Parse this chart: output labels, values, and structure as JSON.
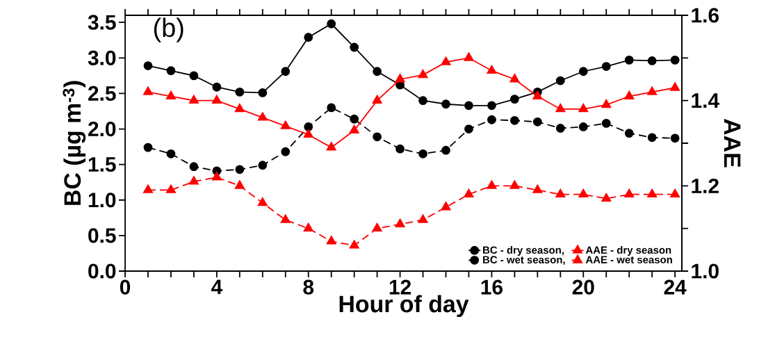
{
  "chart_data": {
    "type": "line",
    "xlabel": "Hour of day",
    "ylabel": "BC (µg m$^{-3}$)",
    "y2label": "AAE",
    "annotations": [
      "(b)"
    ],
    "x": [
      1,
      2,
      3,
      4,
      5,
      6,
      7,
      8,
      9,
      10,
      11,
      12,
      13,
      14,
      15,
      16,
      17,
      18,
      19,
      20,
      21,
      22,
      23,
      24
    ],
    "xlim": [
      0,
      24.3
    ],
    "xticks": [
      0,
      {
        "value": 1,
        "label": null
      },
      {
        "value": 2,
        "label": null
      },
      {
        "value": 3,
        "label": null
      },
      4,
      {
        "value": 5,
        "label": null
      },
      {
        "value": 6,
        "label": null
      },
      {
        "value": 7,
        "label": null
      },
      8,
      {
        "value": 9,
        "label": null
      },
      {
        "value": 10,
        "label": null
      },
      {
        "value": 11,
        "label": null
      },
      12,
      {
        "value": 13,
        "label": null
      },
      {
        "value": 14,
        "label": null
      },
      {
        "value": 15,
        "label": null
      },
      16,
      {
        "value": 17,
        "label": null
      },
      {
        "value": 18,
        "label": null
      },
      {
        "value": 19,
        "label": null
      },
      20,
      {
        "value": 21,
        "label": null
      },
      {
        "value": 22,
        "label": null
      },
      {
        "value": 23,
        "label": null
      },
      24
    ],
    "ylim": [
      0,
      3.6
    ],
    "yticks": [
      {
        "value": 0,
        "label": "0.0"
      },
      0.5,
      {
        "value": 1,
        "label": "1.0"
      },
      1.5,
      {
        "value": 2,
        "label": "2.0"
      },
      2.5,
      {
        "value": 3,
        "label": "3.0"
      },
      3.5
    ],
    "y2lim": [
      1.0,
      1.6
    ],
    "y2ticks": [
      {
        "value": 1.0,
        "label": "1.0"
      },
      {
        "value": 1.1,
        "label": null
      },
      1.2,
      {
        "value": 1.3,
        "label": null
      },
      1.4,
      {
        "value": 1.5,
        "label": null
      },
      1.6
    ],
    "legend": "bottom right",
    "series": [
      {
        "name": "BC - dry season,",
        "color": "#000000",
        "marker": "circle",
        "line_style": "solid",
        "values": [
          2.89,
          2.82,
          2.75,
          2.59,
          2.52,
          2.51,
          2.81,
          3.29,
          3.48,
          3.15,
          2.81,
          2.62,
          2.4,
          2.35,
          2.33,
          2.33,
          2.42,
          2.52,
          2.68,
          2.81,
          2.88,
          2.97,
          2.96,
          2.97
        ]
      },
      {
        "name": "AAE - dry season",
        "color": "#ff0000",
        "marker": "triangle",
        "line_style": "solid",
        "axis": "y2",
        "values": [
          1.42,
          1.41,
          1.4,
          1.4,
          1.38,
          1.36,
          1.34,
          1.32,
          1.29,
          1.33,
          1.4,
          1.45,
          1.46,
          1.49,
          1.5,
          1.47,
          1.45,
          1.41,
          1.38,
          1.38,
          1.39,
          1.41,
          1.42,
          1.43
        ]
      },
      {
        "name": "BC - wet season,",
        "color": "#000000",
        "marker": "circle",
        "line_style": "dashed",
        "values": [
          1.74,
          1.65,
          1.47,
          1.41,
          1.43,
          1.49,
          1.68,
          2.03,
          2.3,
          2.14,
          1.89,
          1.72,
          1.65,
          1.7,
          2.0,
          2.13,
          2.12,
          2.1,
          2.01,
          2.03,
          2.08,
          1.94,
          1.88,
          1.87
        ]
      },
      {
        "name": "AAE - wet season",
        "color": "#ff0000",
        "marker": "triangle",
        "line_style": "dashed",
        "axis": "y2",
        "values": [
          1.19,
          1.19,
          1.21,
          1.22,
          1.2,
          1.16,
          1.12,
          1.1,
          1.07,
          1.06,
          1.1,
          1.11,
          1.12,
          1.15,
          1.18,
          1.2,
          1.2,
          1.19,
          1.18,
          1.18,
          1.17,
          1.18,
          1.18,
          1.18
        ]
      }
    ]
  }
}
